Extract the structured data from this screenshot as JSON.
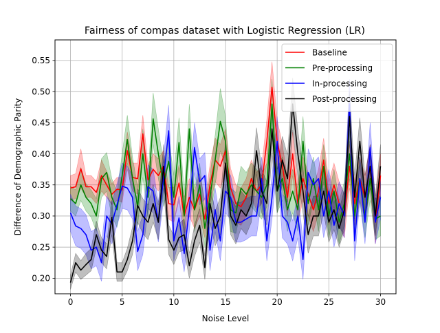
{
  "chart_data": {
    "type": "line",
    "title": "Fairness of compas dataset with Logistic Regression (LR)",
    "xlabel": "Noise Level",
    "ylabel": "Difference of Demographic Parity",
    "xlim": [
      -1.5,
      31.5
    ],
    "ylim": [
      0.175,
      0.583
    ],
    "xticks": [
      0,
      5,
      10,
      15,
      20,
      25,
      30
    ],
    "xtick_labels": [
      "0",
      "5",
      "10",
      "15",
      "20",
      "25",
      "30"
    ],
    "yticks": [
      0.2,
      0.25,
      0.3,
      0.35,
      0.4,
      0.45,
      0.5,
      0.55
    ],
    "ytick_labels": [
      "0.20",
      "0.25",
      "0.30",
      "0.35",
      "0.40",
      "0.45",
      "0.50",
      "0.55"
    ],
    "grid": true,
    "legend_position": "top-right",
    "x": [
      0,
      0.5,
      1,
      1.5,
      2,
      2.5,
      3,
      3.5,
      4,
      4.5,
      5,
      5.5,
      6,
      6.5,
      7,
      7.5,
      8,
      8.5,
      9,
      9.5,
      10,
      10.5,
      11,
      11.5,
      12,
      12.5,
      13,
      13.5,
      14,
      14.5,
      15,
      15.5,
      16,
      16.5,
      17,
      17.5,
      18,
      18.5,
      19,
      19.5,
      20,
      20.5,
      21,
      21.5,
      22,
      22.5,
      23,
      23.5,
      24,
      24.5,
      25,
      25.5,
      26,
      26.5,
      27,
      27.5,
      28,
      28.5,
      29,
      29.5,
      30
    ],
    "series": [
      {
        "name": "Baseline",
        "color": "#ff0000",
        "values": [
          0.345,
          0.347,
          0.376,
          0.347,
          0.347,
          0.338,
          0.365,
          0.35,
          0.335,
          0.343,
          0.342,
          0.405,
          0.362,
          0.36,
          0.432,
          0.358,
          0.375,
          0.365,
          0.38,
          0.32,
          0.318,
          0.353,
          0.3,
          0.33,
          0.31,
          0.335,
          0.295,
          0.35,
          0.39,
          0.38,
          0.405,
          0.345,
          0.32,
          0.315,
          0.33,
          0.36,
          0.34,
          0.35,
          0.42,
          0.507,
          0.42,
          0.38,
          0.33,
          0.4,
          0.32,
          0.36,
          0.335,
          0.31,
          0.34,
          0.39,
          0.32,
          0.35,
          0.32,
          0.3,
          0.38,
          0.32,
          0.36,
          0.33,
          0.38,
          0.29,
          0.365
        ],
        "lower": [
          0.325,
          0.328,
          0.345,
          0.33,
          0.33,
          0.32,
          0.34,
          0.33,
          0.318,
          0.325,
          0.322,
          0.375,
          0.34,
          0.335,
          0.4,
          0.335,
          0.35,
          0.34,
          0.355,
          0.295,
          0.29,
          0.325,
          0.27,
          0.3,
          0.28,
          0.3,
          0.265,
          0.318,
          0.355,
          0.345,
          0.37,
          0.315,
          0.29,
          0.285,
          0.3,
          0.33,
          0.31,
          0.32,
          0.385,
          0.465,
          0.385,
          0.345,
          0.3,
          0.365,
          0.29,
          0.325,
          0.3,
          0.275,
          0.305,
          0.355,
          0.285,
          0.315,
          0.285,
          0.265,
          0.345,
          0.285,
          0.325,
          0.295,
          0.345,
          0.255,
          0.33
        ],
        "upper": [
          0.365,
          0.368,
          0.408,
          0.365,
          0.365,
          0.356,
          0.39,
          0.372,
          0.352,
          0.362,
          0.362,
          0.435,
          0.385,
          0.385,
          0.462,
          0.382,
          0.4,
          0.392,
          0.405,
          0.346,
          0.346,
          0.382,
          0.33,
          0.36,
          0.34,
          0.368,
          0.325,
          0.382,
          0.425,
          0.415,
          0.44,
          0.376,
          0.35,
          0.345,
          0.36,
          0.39,
          0.37,
          0.38,
          0.455,
          0.548,
          0.455,
          0.415,
          0.36,
          0.435,
          0.35,
          0.395,
          0.37,
          0.345,
          0.375,
          0.425,
          0.355,
          0.385,
          0.355,
          0.335,
          0.415,
          0.355,
          0.395,
          0.365,
          0.415,
          0.325,
          0.4
        ]
      },
      {
        "name": "Pre-processing",
        "color": "#008000",
        "values": [
          0.328,
          0.32,
          0.35,
          0.33,
          0.32,
          0.3,
          0.36,
          0.37,
          0.33,
          0.31,
          0.365,
          0.423,
          0.36,
          0.315,
          0.4,
          0.33,
          0.456,
          0.4,
          0.35,
          0.388,
          0.33,
          0.418,
          0.3,
          0.44,
          0.31,
          0.35,
          0.28,
          0.33,
          0.39,
          0.452,
          0.42,
          0.31,
          0.305,
          0.345,
          0.335,
          0.35,
          0.34,
          0.33,
          0.35,
          0.48,
          0.34,
          0.36,
          0.31,
          0.34,
          0.31,
          0.42,
          0.32,
          0.36,
          0.31,
          0.38,
          0.3,
          0.34,
          0.29,
          0.32,
          0.4,
          0.3,
          0.36,
          0.3,
          0.36,
          0.295,
          0.3
        ],
        "lower": [
          0.308,
          0.3,
          0.325,
          0.308,
          0.298,
          0.275,
          0.33,
          0.34,
          0.3,
          0.282,
          0.33,
          0.385,
          0.325,
          0.285,
          0.362,
          0.298,
          0.415,
          0.36,
          0.315,
          0.35,
          0.295,
          0.378,
          0.265,
          0.4,
          0.275,
          0.315,
          0.25,
          0.295,
          0.35,
          0.405,
          0.38,
          0.275,
          0.272,
          0.31,
          0.3,
          0.315,
          0.305,
          0.295,
          0.315,
          0.44,
          0.305,
          0.325,
          0.275,
          0.305,
          0.275,
          0.38,
          0.285,
          0.325,
          0.275,
          0.345,
          0.265,
          0.305,
          0.255,
          0.285,
          0.36,
          0.265,
          0.325,
          0.265,
          0.325,
          0.262,
          0.268
        ],
        "upper": [
          0.348,
          0.342,
          0.378,
          0.352,
          0.342,
          0.328,
          0.392,
          0.402,
          0.36,
          0.338,
          0.4,
          0.462,
          0.395,
          0.345,
          0.44,
          0.362,
          0.498,
          0.44,
          0.385,
          0.428,
          0.365,
          0.458,
          0.335,
          0.48,
          0.345,
          0.385,
          0.31,
          0.365,
          0.43,
          0.505,
          0.46,
          0.345,
          0.338,
          0.38,
          0.37,
          0.385,
          0.375,
          0.365,
          0.385,
          0.52,
          0.375,
          0.395,
          0.345,
          0.375,
          0.345,
          0.46,
          0.355,
          0.395,
          0.345,
          0.415,
          0.335,
          0.375,
          0.325,
          0.355,
          0.44,
          0.335,
          0.395,
          0.335,
          0.395,
          0.328,
          0.332
        ]
      },
      {
        "name": "In-processing",
        "color": "#0000ff",
        "values": [
          0.305,
          0.284,
          0.28,
          0.27,
          0.245,
          0.25,
          0.225,
          0.3,
          0.287,
          0.318,
          0.348,
          0.345,
          0.33,
          0.243,
          0.27,
          0.347,
          0.34,
          0.29,
          0.36,
          0.437,
          0.26,
          0.297,
          0.24,
          0.31,
          0.41,
          0.355,
          0.365,
          0.245,
          0.31,
          0.26,
          0.34,
          0.33,
          0.29,
          0.29,
          0.295,
          0.3,
          0.3,
          0.36,
          0.26,
          0.33,
          0.42,
          0.3,
          0.29,
          0.26,
          0.3,
          0.23,
          0.37,
          0.35,
          0.36,
          0.3,
          0.34,
          0.285,
          0.32,
          0.3,
          0.48,
          0.26,
          0.36,
          0.29,
          0.41,
          0.29,
          0.33
        ],
        "lower": [
          0.275,
          0.252,
          0.248,
          0.238,
          0.215,
          0.22,
          0.195,
          0.268,
          0.255,
          0.285,
          0.312,
          0.31,
          0.295,
          0.212,
          0.238,
          0.312,
          0.305,
          0.258,
          0.325,
          0.395,
          0.228,
          0.262,
          0.21,
          0.275,
          0.37,
          0.318,
          0.328,
          0.212,
          0.275,
          0.228,
          0.305,
          0.295,
          0.258,
          0.258,
          0.262,
          0.268,
          0.268,
          0.325,
          0.228,
          0.295,
          0.38,
          0.265,
          0.255,
          0.228,
          0.265,
          0.198,
          0.332,
          0.315,
          0.325,
          0.265,
          0.305,
          0.25,
          0.285,
          0.265,
          0.44,
          0.228,
          0.325,
          0.255,
          0.37,
          0.255,
          0.295
        ],
        "upper": [
          0.335,
          0.316,
          0.312,
          0.302,
          0.275,
          0.28,
          0.255,
          0.332,
          0.32,
          0.352,
          0.385,
          0.38,
          0.365,
          0.275,
          0.302,
          0.382,
          0.375,
          0.322,
          0.395,
          0.478,
          0.292,
          0.332,
          0.27,
          0.345,
          0.45,
          0.392,
          0.402,
          0.278,
          0.345,
          0.292,
          0.375,
          0.365,
          0.322,
          0.322,
          0.328,
          0.332,
          0.332,
          0.395,
          0.292,
          0.365,
          0.46,
          0.335,
          0.325,
          0.292,
          0.335,
          0.262,
          0.408,
          0.385,
          0.395,
          0.335,
          0.375,
          0.32,
          0.355,
          0.335,
          0.52,
          0.292,
          0.395,
          0.325,
          0.45,
          0.325,
          0.365
        ]
      },
      {
        "name": "Post-processing",
        "color": "#000000",
        "values": [
          0.193,
          0.225,
          0.213,
          0.222,
          0.23,
          0.27,
          0.245,
          0.235,
          0.298,
          0.21,
          0.21,
          0.23,
          0.26,
          0.317,
          0.3,
          0.29,
          0.32,
          0.29,
          0.38,
          0.262,
          0.245,
          0.265,
          0.27,
          0.22,
          0.26,
          0.285,
          0.217,
          0.32,
          0.28,
          0.3,
          0.385,
          0.3,
          0.285,
          0.31,
          0.3,
          0.32,
          0.405,
          0.34,
          0.32,
          0.44,
          0.34,
          0.39,
          0.36,
          0.48,
          0.4,
          0.34,
          0.27,
          0.3,
          0.3,
          0.34,
          0.29,
          0.31,
          0.28,
          0.31,
          0.46,
          0.33,
          0.42,
          0.33,
          0.38,
          0.3,
          0.38
        ],
        "lower": [
          0.182,
          0.21,
          0.198,
          0.205,
          0.212,
          0.248,
          0.225,
          0.215,
          0.27,
          0.195,
          0.195,
          0.212,
          0.238,
          0.29,
          0.272,
          0.262,
          0.29,
          0.262,
          0.345,
          0.238,
          0.222,
          0.242,
          0.245,
          0.2,
          0.235,
          0.258,
          0.198,
          0.29,
          0.252,
          0.27,
          0.35,
          0.27,
          0.255,
          0.28,
          0.27,
          0.29,
          0.368,
          0.305,
          0.285,
          0.4,
          0.305,
          0.352,
          0.322,
          0.438,
          0.362,
          0.305,
          0.24,
          0.268,
          0.268,
          0.305,
          0.258,
          0.278,
          0.25,
          0.278,
          0.42,
          0.295,
          0.382,
          0.295,
          0.345,
          0.268,
          0.345
        ],
        "upper": [
          0.205,
          0.24,
          0.228,
          0.24,
          0.248,
          0.292,
          0.265,
          0.255,
          0.326,
          0.225,
          0.225,
          0.248,
          0.282,
          0.344,
          0.328,
          0.318,
          0.35,
          0.318,
          0.415,
          0.286,
          0.268,
          0.288,
          0.295,
          0.24,
          0.285,
          0.312,
          0.236,
          0.35,
          0.308,
          0.33,
          0.42,
          0.33,
          0.315,
          0.34,
          0.33,
          0.35,
          0.442,
          0.375,
          0.355,
          0.48,
          0.375,
          0.428,
          0.398,
          0.522,
          0.438,
          0.375,
          0.3,
          0.332,
          0.332,
          0.375,
          0.322,
          0.342,
          0.31,
          0.342,
          0.5,
          0.365,
          0.458,
          0.365,
          0.415,
          0.332,
          0.415
        ]
      }
    ]
  }
}
